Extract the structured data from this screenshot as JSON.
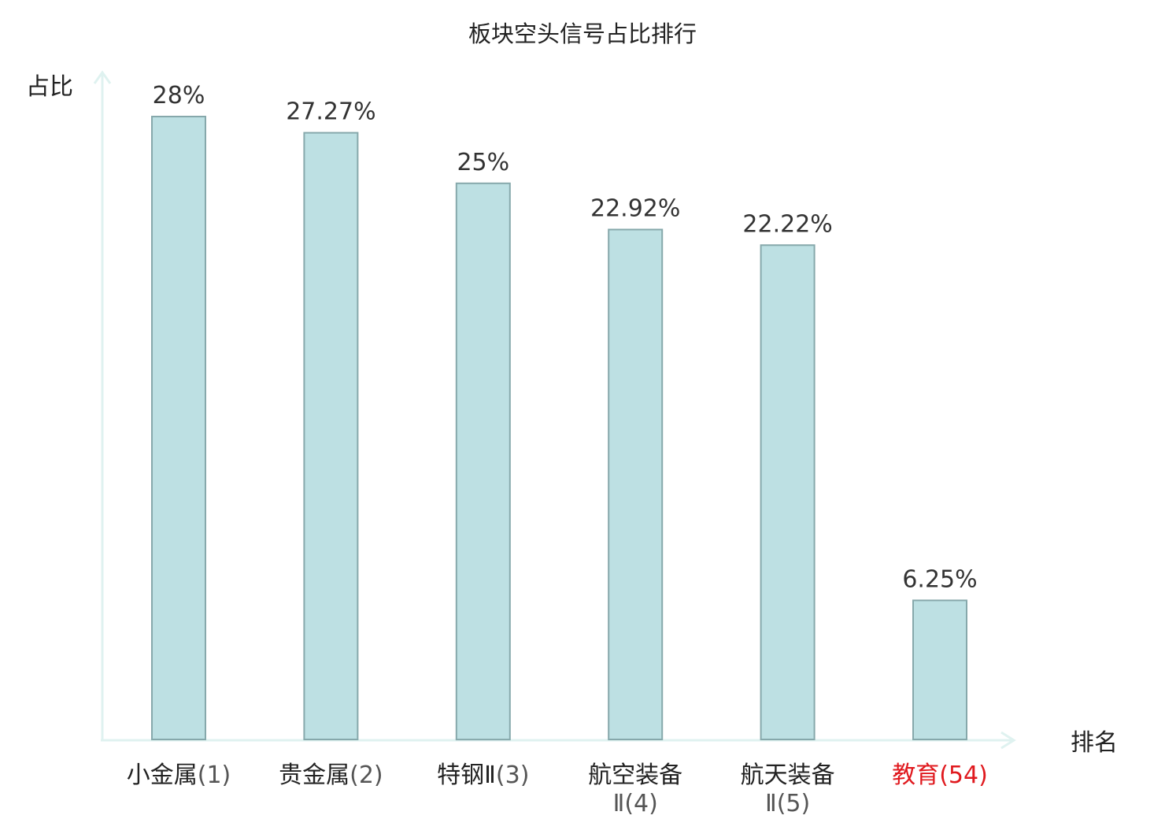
{
  "chart_data": {
    "type": "bar",
    "title": "板块空头信号占比排行",
    "ylabel": "占比",
    "xlabel": "排名",
    "categories": [
      {
        "name": "小金属",
        "suffix": "(1)",
        "highlight": false
      },
      {
        "name": "贵金属",
        "suffix": "(2)",
        "highlight": false
      },
      {
        "name": "特钢Ⅱ",
        "suffix": "(3)",
        "highlight": false
      },
      {
        "name": "航空装备",
        "suffix": "Ⅱ(4)",
        "highlight": false
      },
      {
        "name": "航天装备",
        "suffix": "Ⅱ(5)",
        "highlight": false
      },
      {
        "name": "教育",
        "suffix": "(54)",
        "highlight": true
      }
    ],
    "values": [
      28,
      27.27,
      25,
      22.92,
      22.22,
      6.25
    ],
    "value_labels": [
      "28%",
      "27.27%",
      "25%",
      "22.92%",
      "22.22%",
      "6.25%"
    ],
    "unit": "%",
    "ylim": [
      0,
      29.5
    ],
    "grid": false,
    "legend": "none"
  },
  "colors": {
    "bar_fill": "#bde0e3",
    "bar_stroke": "#86a8ab",
    "axis": "#dff2f0",
    "text": "#333333",
    "label": "#222222",
    "suffix": "#555555",
    "highlight": "#e0191e"
  }
}
